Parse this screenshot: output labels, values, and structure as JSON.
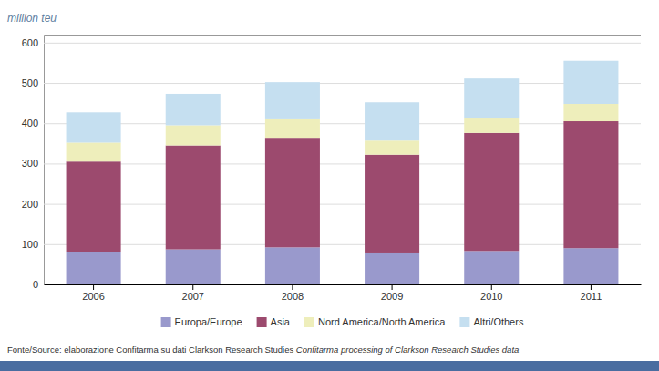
{
  "chart_data": {
    "type": "bar",
    "stacked": true,
    "ylabel": "million teu",
    "categories": [
      "2006",
      "2007",
      "2008",
      "2009",
      "2010",
      "2011"
    ],
    "series": [
      {
        "name": "Europa/Europe",
        "color": "#9999cc",
        "values": [
          80,
          87,
          92,
          77,
          83,
          90
        ]
      },
      {
        "name": "Asia",
        "color": "#9c4a6e",
        "values": [
          225,
          258,
          272,
          245,
          293,
          315
        ]
      },
      {
        "name": "Nord America/North America",
        "color": "#eeeebb",
        "values": [
          47,
          50,
          48,
          35,
          38,
          43
        ]
      },
      {
        "name": "Altri/Others",
        "color": "#c5dff0",
        "values": [
          75,
          78,
          90,
          95,
          97,
          107
        ]
      }
    ],
    "ylim": [
      0,
      620
    ],
    "yticks": [
      0,
      100,
      200,
      300,
      400,
      500,
      600
    ],
    "grid": true,
    "legend": "bottom",
    "annotations": [
      "Fonte/Source: elaborazione Confitarma su dati Clarkson Research Studies",
      "   Confitarma processing of Clarkson Research Studies data"
    ]
  }
}
